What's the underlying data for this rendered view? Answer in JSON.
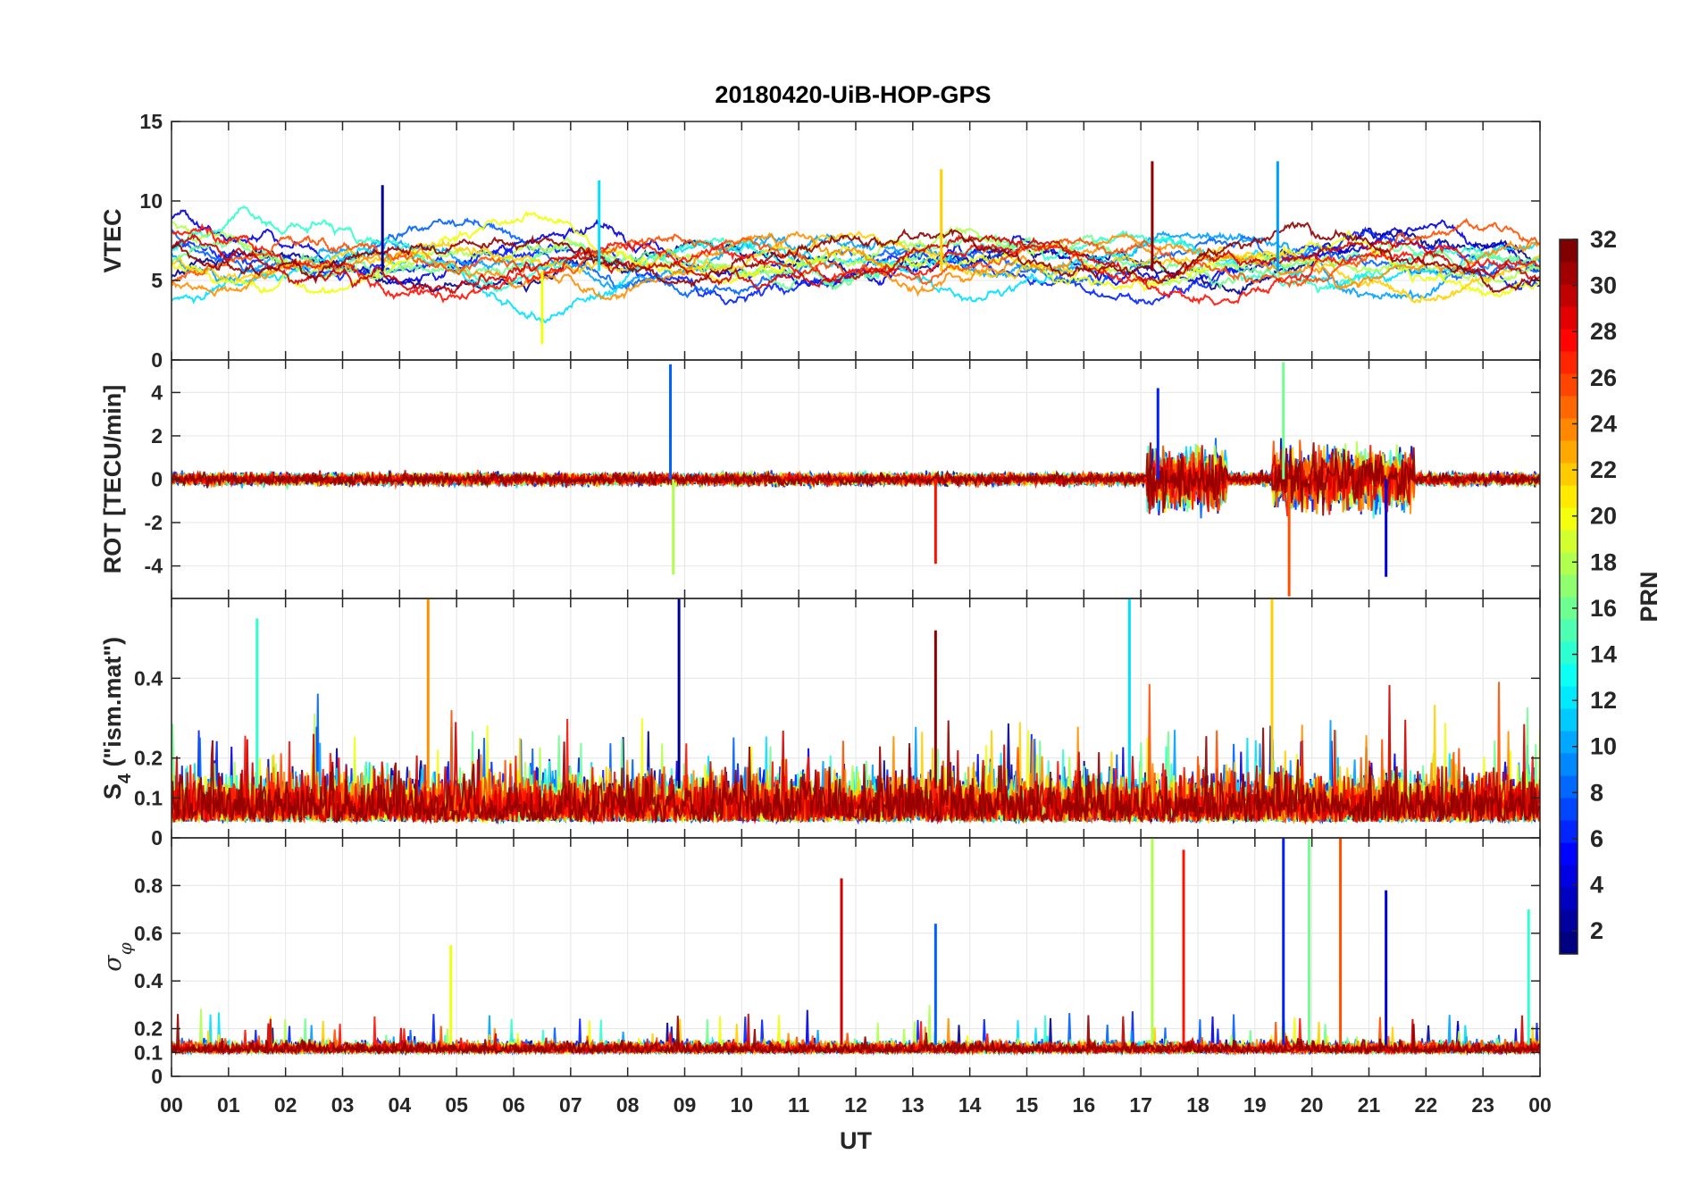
{
  "chart_data": {
    "title": "20180420-UiB-HOP-GPS",
    "type": "line",
    "xlabel": "UT",
    "x_tick_labels": [
      "00",
      "01",
      "02",
      "03",
      "04",
      "05",
      "06",
      "07",
      "08",
      "09",
      "10",
      "11",
      "12",
      "13",
      "14",
      "15",
      "16",
      "17",
      "18",
      "19",
      "20",
      "21",
      "22",
      "23",
      "00"
    ],
    "xlim_hours": [
      0,
      24
    ],
    "panels": [
      {
        "name": "vtec",
        "ylabel": "VTEC",
        "ylim": [
          0,
          15
        ],
        "yticks": [
          0,
          5,
          10,
          15
        ],
        "ytick_labels": [
          "0",
          "5",
          "10",
          "15"
        ],
        "typical_range": [
          2,
          11
        ],
        "events": [
          {
            "hour": 3.7,
            "value": 11.0
          },
          {
            "hour": 7.5,
            "value": 11.3
          },
          {
            "hour": 13.5,
            "value": 12.0
          },
          {
            "hour": 17.2,
            "value": 12.5
          },
          {
            "hour": 19.4,
            "value": 12.5
          },
          {
            "hour": 6.5,
            "value": 1.0
          }
        ]
      },
      {
        "name": "rot",
        "ylabel": "ROT [TECU/min]",
        "ylim": [
          -5.5,
          5.5
        ],
        "yticks": [
          -4,
          -2,
          0,
          2,
          4
        ],
        "ytick_labels": [
          "-4",
          "-2",
          "0",
          "2",
          "4"
        ],
        "typical_range": [
          -0.6,
          0.6
        ],
        "events": [
          {
            "hour": 8.75,
            "value": 5.3
          },
          {
            "hour": 8.8,
            "value": -4.4
          },
          {
            "hour": 13.4,
            "value": -3.9
          },
          {
            "hour": 17.3,
            "value": 4.2
          },
          {
            "hour": 19.5,
            "value": 5.4
          },
          {
            "hour": 19.6,
            "value": -5.4
          },
          {
            "hour": 21.3,
            "value": -4.5
          }
        ]
      },
      {
        "name": "s4",
        "ylabel": "S4 (\"ism.mat\")",
        "ylabel_main": "S",
        "ylabel_sub": "4",
        "ylabel_rest": " (\"ism.mat\")",
        "ylim": [
          0,
          0.6
        ],
        "yticks": [
          0,
          0.1,
          0.2,
          0.4
        ],
        "ytick_labels": [
          "0",
          "0.1",
          "0.2",
          "0.4"
        ],
        "typical_range": [
          0.04,
          0.25
        ],
        "events": [
          {
            "hour": 1.5,
            "value": 0.55
          },
          {
            "hour": 4.5,
            "value": 0.6
          },
          {
            "hour": 8.9,
            "value": 0.6
          },
          {
            "hour": 16.8,
            "value": 0.6
          },
          {
            "hour": 19.3,
            "value": 0.6
          },
          {
            "hour": 13.4,
            "value": 0.52
          }
        ]
      },
      {
        "name": "sigma_phi",
        "ylabel": "σφ",
        "ylabel_main": "σ",
        "ylabel_sub": "φ",
        "ylim": [
          0,
          1.0
        ],
        "yticks": [
          0,
          0.1,
          0.2,
          0.4,
          0.6,
          0.8
        ],
        "ytick_labels": [
          "0",
          "0.1",
          "0.2",
          "0.4",
          "0.6",
          "0.8"
        ],
        "typical_range": [
          0.1,
          0.18
        ],
        "events": [
          {
            "hour": 4.9,
            "value": 0.55
          },
          {
            "hour": 11.75,
            "value": 0.83
          },
          {
            "hour": 13.4,
            "value": 0.64
          },
          {
            "hour": 17.2,
            "value": 1.0
          },
          {
            "hour": 17.75,
            "value": 0.95
          },
          {
            "hour": 19.5,
            "value": 1.0
          },
          {
            "hour": 19.95,
            "value": 1.0
          },
          {
            "hour": 20.5,
            "value": 1.0
          },
          {
            "hour": 21.3,
            "value": 0.78
          },
          {
            "hour": 23.8,
            "value": 0.7
          }
        ]
      }
    ],
    "colorbar": {
      "label": "PRN",
      "range": [
        1,
        32
      ],
      "ticks": [
        2,
        4,
        6,
        8,
        10,
        12,
        14,
        16,
        18,
        20,
        22,
        24,
        26,
        28,
        30,
        32
      ],
      "tick_labels": [
        "2",
        "4",
        "6",
        "8",
        "10",
        "12",
        "14",
        "16",
        "18",
        "20",
        "22",
        "24",
        "26",
        "28",
        "30",
        "32"
      ],
      "colormap": "jet"
    },
    "series": [
      {
        "name": "PRN 1",
        "prn": 1,
        "color": "#00008f"
      },
      {
        "name": "PRN 3",
        "prn": 3,
        "color": "#0000df"
      },
      {
        "name": "PRN 5",
        "prn": 5,
        "color": "#0020ff"
      },
      {
        "name": "PRN 7",
        "prn": 7,
        "color": "#0060ff"
      },
      {
        "name": "PRN 9",
        "prn": 9,
        "color": "#00a0ff"
      },
      {
        "name": "PRN 11",
        "prn": 11,
        "color": "#00e0ff"
      },
      {
        "name": "PRN 13",
        "prn": 13,
        "color": "#30ffcf"
      },
      {
        "name": "PRN 15",
        "prn": 15,
        "color": "#70ff8f"
      },
      {
        "name": "PRN 17",
        "prn": 17,
        "color": "#b0ff4f"
      },
      {
        "name": "PRN 19",
        "prn": 19,
        "color": "#efff10"
      },
      {
        "name": "PRN 21",
        "prn": 21,
        "color": "#ffcf00"
      },
      {
        "name": "PRN 23",
        "prn": 23,
        "color": "#ff8f00"
      },
      {
        "name": "PRN 25",
        "prn": 25,
        "color": "#ff5000"
      },
      {
        "name": "PRN 27",
        "prn": 27,
        "color": "#ff1000"
      },
      {
        "name": "PRN 29",
        "prn": 29,
        "color": "#cf0000"
      },
      {
        "name": "PRN 31",
        "prn": 31,
        "color": "#8f0000"
      }
    ]
  }
}
